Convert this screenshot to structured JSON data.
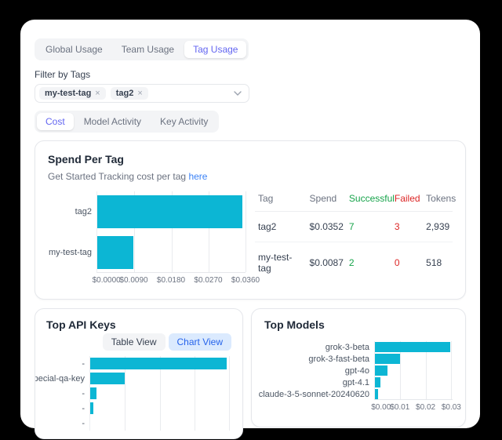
{
  "usage_tabs": [
    {
      "label": "Global Usage",
      "selected": false
    },
    {
      "label": "Team Usage",
      "selected": false
    },
    {
      "label": "Tag Usage",
      "selected": true
    }
  ],
  "filter": {
    "label": "Filter by Tags",
    "tags": [
      {
        "label": "my-test-tag"
      },
      {
        "label": "tag2"
      }
    ],
    "remove_icon": "×"
  },
  "view_tabs": [
    {
      "label": "Cost",
      "selected": true
    },
    {
      "label": "Model Activity",
      "selected": false
    },
    {
      "label": "Key Activity",
      "selected": false
    }
  ],
  "spend_card": {
    "title": "Spend Per Tag",
    "subtitle_text": "Get Started Tracking cost per tag",
    "subtitle_link": "here",
    "table": {
      "headers": [
        "Tag",
        "Spend",
        "Successful",
        "Failed",
        "Tokens"
      ],
      "rows": [
        {
          "tag": "tag2",
          "spend": "$0.0352",
          "successful": "7",
          "failed": "3",
          "tokens": "2,939"
        },
        {
          "tag": "my-test-tag",
          "spend": "$0.0087",
          "successful": "2",
          "failed": "0",
          "tokens": "518"
        }
      ]
    }
  },
  "api_keys_card": {
    "title": "Top API Keys",
    "buttons": {
      "table_view": "Table View",
      "chart_view": "Chart View"
    },
    "selected_view": "Chart View"
  },
  "models_card": {
    "title": "Top Models"
  },
  "colors": {
    "bar_cyan": "#0cb6d4",
    "success_green": "#16a34a",
    "failed_red": "#dc2626",
    "accent_indigo": "#6366f1",
    "link_blue": "#3b82f6"
  },
  "chart_data": [
    {
      "id": "spend_per_tag",
      "type": "bar",
      "orientation": "horizontal",
      "title": "Spend Per Tag",
      "categories": [
        "tag2",
        "my-test-tag"
      ],
      "values": [
        0.0352,
        0.0087
      ],
      "xlim": [
        0,
        0.036
      ],
      "grid": true,
      "bar_color": "#0cb6d4",
      "ticks": [
        {
          "label": "$0.0000",
          "value": 0
        },
        {
          "label": "$0.0090",
          "value": 0.009
        },
        {
          "label": "$0.0180",
          "value": 0.018
        },
        {
          "label": "$0.0270",
          "value": 0.027
        },
        {
          "label": "$0.0360",
          "value": 0.036
        }
      ]
    },
    {
      "id": "top_api_keys",
      "type": "bar",
      "orientation": "horizontal",
      "title": "Top API Keys",
      "categories": [
        "-",
        "pecial-qa-key",
        "-",
        "-",
        "-"
      ],
      "values": [
        0.0295,
        0.0075,
        0.0014,
        0.0006,
        0
      ],
      "values_note": "estimated from bar lengths; x-axis labels clipped by card",
      "xlim": [
        0,
        0.0305
      ],
      "grid": true,
      "bar_color": "#0cb6d4",
      "ticks": [
        {
          "label": "",
          "value": 0.0075
        },
        {
          "label": "",
          "value": 0.015
        },
        {
          "label": "",
          "value": 0.0225
        },
        {
          "label": "",
          "value": 0.03
        }
      ]
    },
    {
      "id": "top_models",
      "type": "bar",
      "orientation": "horizontal",
      "title": "Top Models",
      "categories": [
        "grok-3-beta",
        "grok-3-fast-beta",
        "gpt-4o",
        "gpt-4.1",
        "claude-3-5-sonnet-20240620"
      ],
      "values": [
        0.0295,
        0.01,
        0.0049,
        0.0023,
        0.0012
      ],
      "values_note": "estimated from bar lengths vs gridlines",
      "xlim": [
        0,
        0.0305
      ],
      "grid": true,
      "bar_color": "#0cb6d4",
      "ticks": [
        {
          "label": "$0.00",
          "value": 0
        },
        {
          "label": "$0.01",
          "value": 0.01
        },
        {
          "label": "$0.02",
          "value": 0.02
        },
        {
          "label": "$0.03",
          "value": 0.03
        }
      ]
    }
  ]
}
